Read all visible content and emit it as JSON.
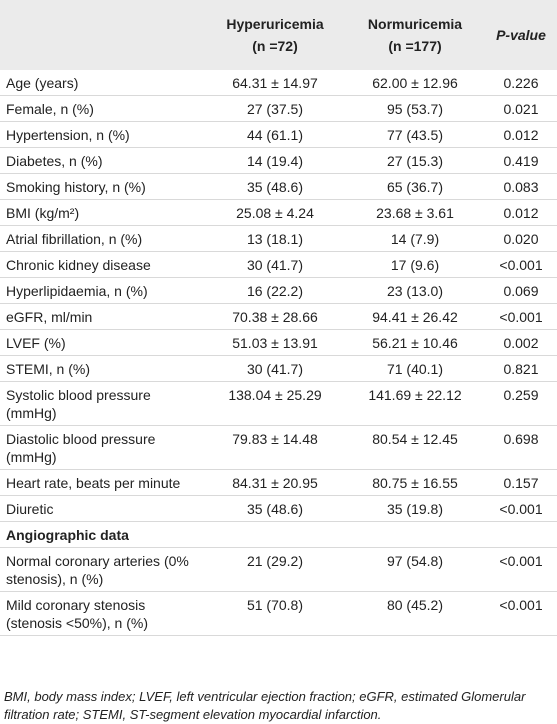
{
  "table": {
    "columns": [
      {
        "name": "Hyperuricemia",
        "n": "(n =72)"
      },
      {
        "name": "Normuricemia",
        "n": "(n =177)"
      },
      {
        "name": "P-value"
      }
    ],
    "rows": [
      [
        "Age (years)",
        "64.31 ± 14.97",
        "62.00 ± 12.96",
        "0.226"
      ],
      [
        "Female, n (%)",
        "27 (37.5)",
        "95 (53.7)",
        "0.021"
      ],
      [
        "Hypertension, n (%)",
        "44 (61.1)",
        "77 (43.5)",
        "0.012"
      ],
      [
        "Diabetes, n (%)",
        "14 (19.4)",
        "27 (15.3)",
        "0.419"
      ],
      [
        "Smoking history, n (%)",
        "35 (48.6)",
        "65 (36.7)",
        "0.083"
      ],
      [
        "BMI (kg/m²)",
        "25.08 ± 4.24",
        "23.68 ± 3.61",
        "0.012"
      ],
      [
        "Atrial fibrillation, n (%)",
        "13 (18.1)",
        "14 (7.9)",
        "0.020"
      ],
      [
        "Chronic kidney disease",
        "30 (41.7)",
        "17 (9.6)",
        "<0.001"
      ],
      [
        "Hyperlipidaemia, n (%)",
        "16 (22.2)",
        "23 (13.0)",
        "0.069"
      ],
      [
        "eGFR, ml/min",
        "70.38 ± 28.66",
        "94.41 ± 26.42",
        "<0.001"
      ],
      [
        "LVEF (%)",
        "51.03 ± 13.91",
        "56.21 ± 10.46",
        "0.002"
      ],
      [
        "STEMI, n (%)",
        "30 (41.7)",
        "71 (40.1)",
        "0.821"
      ],
      [
        "Systolic blood pressure (mmHg)",
        "138.04 ± 25.29",
        "141.69 ± 22.12",
        "0.259"
      ],
      [
        "Diastolic blood pressure (mmHg)",
        "79.83 ± 14.48",
        "80.54 ± 12.45",
        "0.698"
      ],
      [
        "Heart rate, beats per minute",
        "84.31 ± 20.95",
        "80.75 ± 16.55",
        "0.157"
      ],
      [
        "Diuretic",
        "35 (48.6)",
        "35 (19.8)",
        "<0.001"
      ],
      [
        "Angiographic data"
      ],
      [
        "Normal coronary arteries (0% stenosis), n (%)",
        "21 (29.2)",
        "97 (54.8)",
        "<0.001"
      ],
      [
        "Mild coronary stenosis (stenosis <50%), n (%)",
        "51 (70.8)",
        "80 (45.2)",
        "<0.001"
      ]
    ]
  },
  "footnote": "BMI, body mass index; LVEF, left ventricular ejection fraction; eGFR, estimated Glomerular filtration rate; STEMI, ST-segment elevation myocardial infarction."
}
